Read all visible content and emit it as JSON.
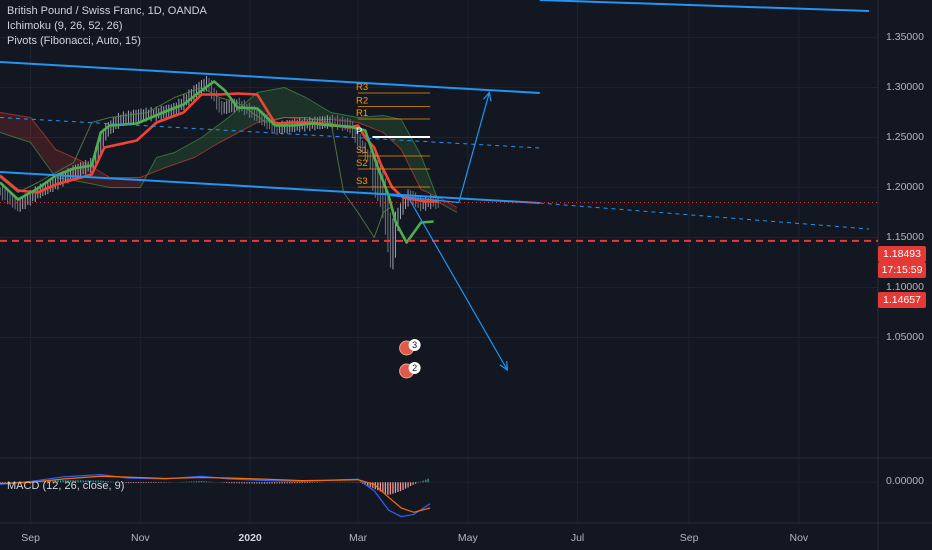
{
  "header": {
    "symbol_line": "British Pound / Swiss Franc, 1D, OANDA",
    "ichimoku_line": "Ichimoku (9, 26, 52, 26)",
    "pivots_line": "Pivots (Fibonacci, Auto, 15)"
  },
  "price_tags": {
    "last_price": "1.18493",
    "countdown": "17:15:59",
    "support_line": "1.14657"
  },
  "colors": {
    "background": "#131722",
    "grid": "#1e2230",
    "trendline": "#2196f3",
    "tenkan": "#4caf50",
    "kijun": "#f44336",
    "kumo_bear": "#f44336",
    "kumo_bull": "#4caf50",
    "pivot": "#ff9800",
    "support": "#e53935",
    "macd": "#2962ff",
    "signal": "#ff6d00"
  },
  "badges": [
    {
      "date": "2020-03-28",
      "value": 1.0395,
      "count": "3"
    },
    {
      "date": "2020-03-28",
      "value": 1.0165,
      "count": "2"
    }
  ],
  "chart_data": [
    {
      "type": "line",
      "title": "",
      "symbol": "GBPCHF",
      "xlim": [
        "2019-08-15",
        "2020-12-15"
      ],
      "ylim": [
        0.9375,
        1.3875
      ],
      "x_ticks": [
        "Sep",
        "Nov",
        "2020",
        "Mar",
        "May",
        "Jul",
        "Sep",
        "Nov"
      ],
      "x_tick_dates": [
        "2019-09-01",
        "2019-11-01",
        "2020-01-01",
        "2020-03-01",
        "2020-05-01",
        "2020-07-01",
        "2020-09-01",
        "2020-11-01"
      ],
      "y_ticks": [
        "1.05000",
        "1.10000",
        "1.15000",
        "1.20000",
        "1.25000",
        "1.30000",
        "1.35000"
      ],
      "y_tick_values": [
        1.05,
        1.1,
        1.15,
        1.2,
        1.25,
        1.3,
        1.35
      ],
      "grid": true,
      "series": [
        {
          "role": "close",
          "x": [
            "2019-08-15",
            "2019-08-25",
            "2019-09-05",
            "2019-09-15",
            "2019-09-25",
            "2019-10-05",
            "2019-10-12",
            "2019-10-20",
            "2019-10-30",
            "2019-11-10",
            "2019-11-20",
            "2019-12-01",
            "2019-12-08",
            "2019-12-15",
            "2019-12-25",
            "2020-01-05",
            "2020-01-15",
            "2020-01-25",
            "2020-02-05",
            "2020-02-15",
            "2020-02-25",
            "2020-03-02",
            "2020-03-09",
            "2020-03-14",
            "2020-03-19",
            "2020-03-24",
            "2020-03-29",
            "2020-04-05",
            "2020-04-10",
            "2020-04-15"
          ],
          "y": [
            1.196,
            1.182,
            1.196,
            1.205,
            1.216,
            1.223,
            1.256,
            1.268,
            1.272,
            1.274,
            1.278,
            1.296,
            1.305,
            1.279,
            1.283,
            1.272,
            1.259,
            1.262,
            1.264,
            1.266,
            1.262,
            1.243,
            1.222,
            1.205,
            1.145,
            1.178,
            1.192,
            1.183,
            1.186,
            1.185
          ]
        },
        {
          "role": "tenkan",
          "x": [
            "2019-08-15",
            "2019-08-25",
            "2019-09-05",
            "2019-09-15",
            "2019-09-25",
            "2019-10-05",
            "2019-10-10",
            "2019-10-15",
            "2019-10-30",
            "2019-11-15",
            "2019-11-25",
            "2019-12-05",
            "2019-12-12",
            "2019-12-18",
            "2019-12-25",
            "2020-01-05",
            "2020-01-15",
            "2020-01-25",
            "2020-02-05",
            "2020-02-15",
            "2020-02-25",
            "2020-03-05",
            "2020-03-12",
            "2020-03-18",
            "2020-03-22",
            "2020-03-28",
            "2020-04-05",
            "2020-04-12"
          ],
          "y": [
            1.205,
            1.188,
            1.199,
            1.212,
            1.219,
            1.222,
            1.255,
            1.262,
            1.264,
            1.276,
            1.283,
            1.297,
            1.306,
            1.297,
            1.28,
            1.279,
            1.262,
            1.262,
            1.264,
            1.262,
            1.261,
            1.257,
            1.22,
            1.192,
            1.165,
            1.145,
            1.165,
            1.166
          ]
        },
        {
          "role": "kijun",
          "x": [
            "2019-08-15",
            "2019-08-25",
            "2019-09-05",
            "2019-09-15",
            "2019-09-25",
            "2019-10-05",
            "2019-10-12",
            "2019-10-30",
            "2019-11-10",
            "2019-11-25",
            "2019-12-05",
            "2019-12-15",
            "2019-12-25",
            "2020-01-05",
            "2020-01-15",
            "2020-01-25",
            "2020-02-05",
            "2020-02-15",
            "2020-02-25",
            "2020-03-01",
            "2020-03-05",
            "2020-03-10",
            "2020-03-14",
            "2020-03-20",
            "2020-03-26",
            "2020-04-01",
            "2020-04-08",
            "2020-04-15"
          ],
          "y": [
            1.212,
            1.197,
            1.195,
            1.203,
            1.208,
            1.213,
            1.24,
            1.247,
            1.265,
            1.275,
            1.293,
            1.293,
            1.294,
            1.293,
            1.264,
            1.265,
            1.265,
            1.263,
            1.26,
            1.262,
            1.25,
            1.24,
            1.222,
            1.2,
            1.19,
            1.188,
            1.186,
            1.186
          ]
        },
        {
          "role": "lagging-span",
          "x": [
            "2019-08-15",
            "2019-08-25",
            "2019-09-05",
            "2019-09-15",
            "2019-09-25",
            "2019-10-05",
            "2019-10-15",
            "2019-11-05",
            "2019-11-20",
            "2019-12-05",
            "2019-12-15",
            "2019-12-25",
            "2020-01-10",
            "2020-01-20",
            "2020-02-01",
            "2020-02-15",
            "2020-02-22",
            "2020-03-01",
            "2020-03-10",
            "2020-03-15",
            "2020-03-19"
          ],
          "y": [
            1.21,
            1.195,
            1.205,
            1.215,
            1.225,
            1.265,
            1.27,
            1.275,
            1.29,
            1.3,
            1.29,
            1.285,
            1.265,
            1.27,
            1.27,
            1.265,
            1.195,
            1.175,
            1.15,
            1.175,
            1.18
          ]
        },
        {
          "role": "senkou-a",
          "x": [
            "2019-08-15",
            "2019-09-01",
            "2019-09-15",
            "2019-10-01",
            "2019-10-15",
            "2019-11-01",
            "2019-11-10",
            "2019-11-20",
            "2019-12-05",
            "2019-12-20",
            "2020-01-05",
            "2020-01-20",
            "2020-02-01",
            "2020-02-15",
            "2020-03-01",
            "2020-03-15",
            "2020-03-25",
            "2020-04-05",
            "2020-04-15",
            "2020-04-25"
          ],
          "y": [
            1.255,
            1.245,
            1.21,
            1.205,
            1.2,
            1.2,
            1.23,
            1.235,
            1.25,
            1.27,
            1.295,
            1.3,
            1.29,
            1.275,
            1.27,
            1.272,
            1.268,
            1.232,
            1.185,
            1.175
          ]
        },
        {
          "role": "senkou-b",
          "x": [
            "2019-08-15",
            "2019-09-01",
            "2019-09-15",
            "2019-10-01",
            "2019-10-15",
            "2019-11-01",
            "2019-11-15",
            "2019-12-01",
            "2019-12-15",
            "2020-01-05",
            "2020-01-20",
            "2020-02-01",
            "2020-02-15",
            "2020-03-01",
            "2020-03-15",
            "2020-03-25",
            "2020-04-05",
            "2020-04-15",
            "2020-04-25"
          ],
          "y": [
            1.275,
            1.27,
            1.238,
            1.225,
            1.21,
            1.21,
            1.22,
            1.23,
            1.245,
            1.265,
            1.27,
            1.268,
            1.268,
            1.265,
            1.255,
            1.238,
            1.198,
            1.19,
            1.18
          ]
        },
        {
          "role": "upper-trendline",
          "x": [
            "2019-08-15",
            "2020-06-10"
          ],
          "y": [
            1.3255,
            1.2945
          ]
        },
        {
          "role": "lower-trendline",
          "x": [
            "2019-08-15",
            "2020-06-10"
          ],
          "y": [
            1.2155,
            1.1845
          ]
        },
        {
          "role": "lower-trendline-extension",
          "x": [
            "2020-06-10",
            "2020-12-10"
          ],
          "y": [
            1.1845,
            1.1585
          ]
        },
        {
          "role": "mid-channel-dashed",
          "x": [
            "2019-08-15",
            "2020-06-10"
          ],
          "y": [
            1.27,
            1.2395
          ]
        },
        {
          "role": "top-trendline",
          "x": [
            "2020-06-10",
            "2020-12-10"
          ],
          "y": [
            1.3875,
            1.3765
          ]
        },
        {
          "role": "projection-up",
          "x": [
            "2020-03-19",
            "2020-04-26",
            "2020-05-13"
          ],
          "y": [
            1.192,
            1.185,
            1.295
          ]
        },
        {
          "role": "projection-down",
          "x": [
            "2020-03-29",
            "2020-05-23"
          ],
          "y": [
            1.19,
            1.0175
          ]
        },
        {
          "role": "support",
          "x": [
            "2019-08-15",
            "2020-12-15"
          ],
          "y": [
            1.14657,
            1.14657
          ]
        }
      ],
      "pivots": {
        "start": "2020-03-01",
        "end": "2020-04-10",
        "levels": [
          {
            "label": "R3",
            "value": 1.2945
          },
          {
            "label": "R2",
            "value": 1.281
          },
          {
            "label": "R1",
            "value": 1.2685
          },
          {
            "label": "P",
            "value": 1.2505
          },
          {
            "label": "S1",
            "value": 1.2315
          },
          {
            "label": "S2",
            "value": 1.2185
          },
          {
            "label": "S3",
            "value": 1.2005
          }
        ]
      }
    },
    {
      "type": "bar",
      "title": "MACD (12, 26, close, 9)",
      "ylim": [
        -0.0095,
        0.0045
      ],
      "y_ticks": [
        "0.00000"
      ],
      "y_tick_values": [
        0
      ],
      "x": [
        "2019-08-15",
        "2019-09-01",
        "2019-09-20",
        "2019-10-10",
        "2019-10-25",
        "2019-11-15",
        "2019-12-05",
        "2019-12-20",
        "2020-01-10",
        "2020-01-30",
        "2020-02-20",
        "2020-03-01",
        "2020-03-10",
        "2020-03-18",
        "2020-03-25",
        "2020-04-01",
        "2020-04-10"
      ],
      "series": [
        {
          "role": "macd-line",
          "values": [
            -0.0005,
            0.0002,
            0.0013,
            0.0018,
            0.001,
            0.0008,
            0.0014,
            0.0008,
            0.0004,
            0.0002,
            0.0006,
            0.0007,
            -0.002,
            -0.0065,
            -0.008,
            -0.0075,
            -0.005
          ]
        },
        {
          "role": "signal-line",
          "values": [
            -0.0003,
            0.0,
            0.0008,
            0.0014,
            0.0012,
            0.0009,
            0.0011,
            0.001,
            0.0007,
            0.0004,
            0.0005,
            0.0006,
            -0.0005,
            -0.0035,
            -0.006,
            -0.007,
            -0.006
          ]
        },
        {
          "role": "histogram",
          "values": [
            -0.0002,
            0.0002,
            0.0005,
            0.0004,
            -0.0002,
            -0.0001,
            0.0003,
            -0.0002,
            -0.0003,
            -0.0002,
            0.0001,
            0.0001,
            -0.0015,
            -0.003,
            -0.002,
            -0.0005,
            0.001
          ]
        }
      ]
    }
  ]
}
